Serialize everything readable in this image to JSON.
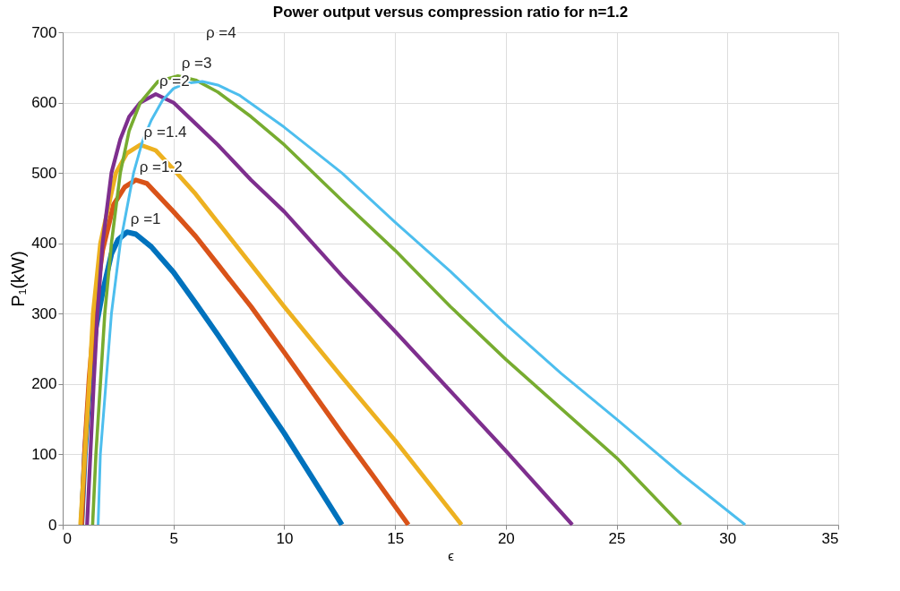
{
  "chart_data": {
    "type": "line",
    "title": "Power output versus compression ratio for n=1.2",
    "xlabel": "ϵ",
    "ylabel": "P₁(kW)",
    "xlim": [
      0,
      35
    ],
    "ylim": [
      0,
      700
    ],
    "xticks": [
      0,
      5,
      10,
      15,
      20,
      25,
      30,
      35
    ],
    "yticks": [
      0,
      100,
      200,
      300,
      400,
      500,
      600,
      700
    ],
    "grid": true,
    "series": [
      {
        "color": "#0072bd",
        "x": [
          0.85,
          1.0,
          1.2,
          1.5,
          1.8,
          2.2,
          2.5,
          2.9,
          3.3,
          4.0,
          5.0,
          6.0,
          7.0,
          8.5,
          10.0,
          11.3,
          12.6
        ],
        "values": [
          0,
          100,
          190,
          280,
          330,
          385,
          405,
          416,
          413,
          395,
          359,
          315,
          270,
          200,
          130,
          65,
          0
        ]
      },
      {
        "color": "#d95319",
        "x": [
          0.85,
          1.0,
          1.2,
          1.5,
          1.8,
          2.3,
          2.8,
          3.3,
          3.8,
          5.0,
          6.0,
          7.0,
          8.5,
          10.0,
          12.6,
          14.0,
          15.6
        ],
        "values": [
          0,
          110,
          210,
          320,
          390,
          455,
          480,
          490,
          485,
          445,
          410,
          370,
          310,
          245,
          130,
          70,
          0
        ]
      },
      {
        "color": "#edb120",
        "x": [
          0.8,
          1.0,
          1.2,
          1.37,
          1.7,
          2.4,
          2.9,
          3.5,
          4.2,
          5.0,
          6.0,
          7.0,
          8.5,
          10.0,
          12.6,
          15.0,
          18.0
        ],
        "values": [
          0,
          100,
          200,
          300,
          400,
          500,
          528,
          540,
          532,
          505,
          470,
          430,
          370,
          310,
          210,
          120,
          0
        ]
      },
      {
        "color": "#7e2f8e",
        "x": [
          1.1,
          1.25,
          1.4,
          1.57,
          1.8,
          2.2,
          2.6,
          3.0,
          3.5,
          4.2,
          5.0,
          6.0,
          7.0,
          8.5,
          10.0,
          12.6,
          15.0,
          17.5,
          20.0,
          23.0
        ],
        "values": [
          0,
          100,
          200,
          300,
          400,
          500,
          548,
          580,
          600,
          612,
          600,
          570,
          540,
          490,
          445,
          354,
          275,
          190,
          105,
          0
        ]
      },
      {
        "color": "#77ac30",
        "x": [
          1.35,
          1.5,
          1.7,
          1.9,
          2.2,
          2.6,
          3.0,
          3.5,
          4.3,
          5.2,
          6.0,
          7.0,
          8.5,
          10.0,
          12.6,
          15.0,
          17.5,
          20.0,
          22.5,
          25.0,
          27.9
        ],
        "values": [
          0,
          100,
          200,
          300,
          400,
          500,
          560,
          600,
          630,
          638,
          632,
          615,
          580,
          540,
          461,
          390,
          310,
          235,
          165,
          95,
          0
        ]
      },
      {
        "color": "#4dbeee",
        "x": [
          1.6,
          1.7,
          1.95,
          2.2,
          2.6,
          3.2,
          3.6,
          4.0,
          4.5,
          5.0,
          5.5,
          6.3,
          7.0,
          8.0,
          10.0,
          12.6,
          15.0,
          17.5,
          20.0,
          22.5,
          25.0,
          28.0,
          30.8
        ],
        "values": [
          0,
          100,
          200,
          300,
          400,
          500,
          545,
          575,
          603,
          620,
          627,
          630,
          625,
          610,
          565,
          500,
          430,
          360,
          285,
          215,
          150,
          70,
          0
        ]
      }
    ],
    "annotations": [
      {
        "text": "ρ =1",
        "x": 2.9,
        "y": 416
      },
      {
        "text": "ρ =1.2",
        "x": 3.3,
        "y": 490
      },
      {
        "text": "ρ =1.4",
        "x": 3.5,
        "y": 540
      },
      {
        "text": "ρ =2",
        "x": 4.2,
        "y": 612
      },
      {
        "text": "ρ =3",
        "x": 5.2,
        "y": 638
      },
      {
        "text": "ρ =4",
        "x": 6.3,
        "y": 630
      }
    ]
  }
}
